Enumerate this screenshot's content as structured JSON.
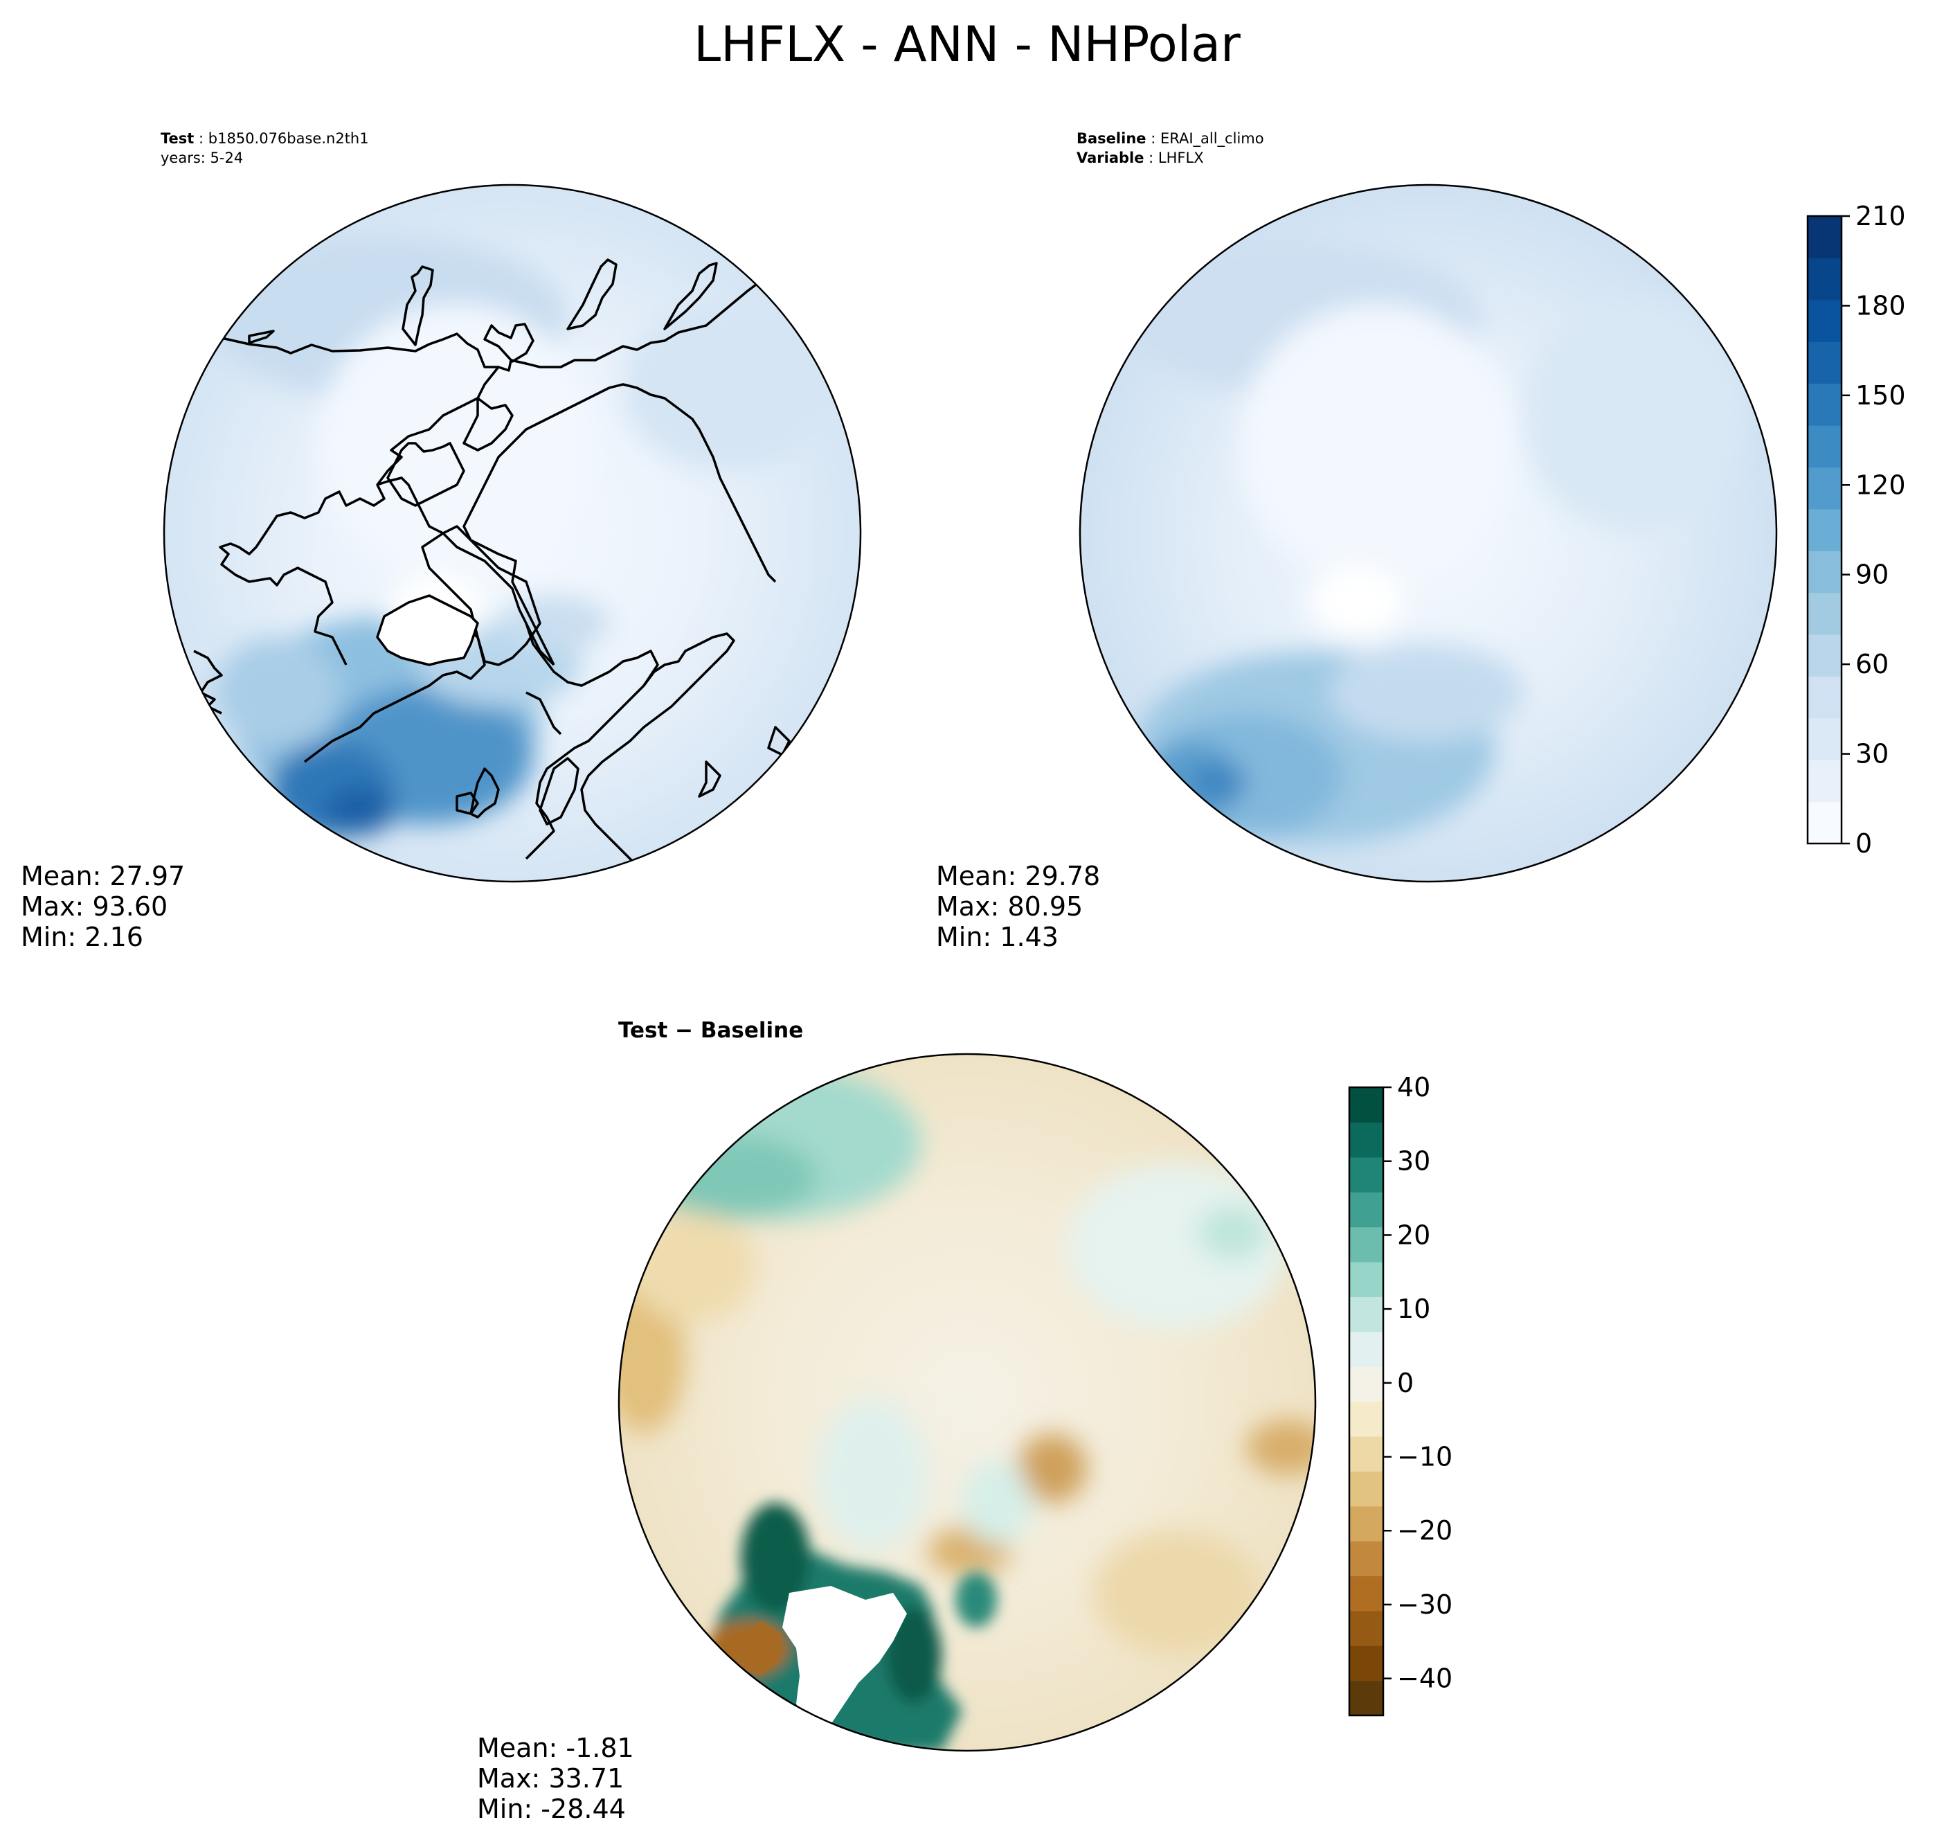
{
  "figure": {
    "title": "LHFLX - ANN - NHPolar"
  },
  "panels": {
    "test": {
      "label_bold": "Test",
      "label_value": "b1850.076base.n2th1",
      "years": "years: 5-24",
      "stats": {
        "mean": "Mean: 27.97",
        "max": "Max: 93.60",
        "min": "Min:  2.16"
      }
    },
    "baseline": {
      "label_bold": "Baseline",
      "label_value": "ERAI_all_climo",
      "var_bold": "Variable",
      "var_value": "LHFLX",
      "stats": {
        "mean": "Mean: 29.78",
        "max": "Max: 80.95",
        "min": "Min:  1.43"
      }
    },
    "diff": {
      "title": "Test − Baseline",
      "stats": {
        "mean": "Mean: -1.81",
        "max": "Max: 33.71",
        "min": "Min: -28.44"
      }
    }
  },
  "chart_data": [
    {
      "type": "heatmap",
      "panel": "test",
      "projection": "north-polar-stereographic",
      "colormap": "Blues",
      "levels_range": [
        0,
        210
      ],
      "mean": 27.97,
      "max": 93.6,
      "min": 2.16
    },
    {
      "type": "heatmap",
      "panel": "baseline",
      "projection": "north-polar-stereographic",
      "colormap": "Blues",
      "levels_range": [
        0,
        210
      ],
      "mean": 29.78,
      "max": 80.95,
      "min": 1.43
    },
    {
      "type": "heatmap",
      "panel": "diff",
      "projection": "north-polar-stereographic",
      "colormap": "BrBG",
      "levels_range": [
        -45,
        40
      ],
      "mean": -1.81,
      "max": 33.71,
      "min": -28.44
    }
  ],
  "colorbars": {
    "top": {
      "ticks": [
        "0",
        "30",
        "60",
        "90",
        "120",
        "150",
        "180",
        "210"
      ],
      "values": [
        0,
        30,
        60,
        90,
        120,
        150,
        180,
        210
      ],
      "range": [
        0,
        210
      ],
      "colors": [
        "#f7fbff",
        "#e8f1fa",
        "#dbe9f6",
        "#cfe1f2",
        "#bad6eb",
        "#a2cbe2",
        "#88bedc",
        "#6aaed6",
        "#519ccc",
        "#3c8bc3",
        "#2978b8",
        "#1764ab",
        "#0a539e",
        "#08468b",
        "#083674"
      ]
    },
    "bottom": {
      "ticks": [
        "−40",
        "−30",
        "−20",
        "−10",
        "0",
        "10",
        "20",
        "30",
        "40"
      ],
      "values": [
        -40,
        -30,
        -20,
        -10,
        0,
        10,
        20,
        30,
        40
      ],
      "range": [
        -45,
        40
      ],
      "colors": [
        "#5c3a0a",
        "#7a4708",
        "#955a13",
        "#b06e22",
        "#c2893e",
        "#d4a95f",
        "#e2c382",
        "#ecd9a6",
        "#f5eac9",
        "#f4f2e7",
        "#e2f1ef",
        "#c2e6df",
        "#97d5c8",
        "#6cbdad",
        "#40a091",
        "#1f8577",
        "#0b6a5c",
        "#02503f"
      ]
    }
  },
  "colors": {
    "land_outline": "#000000",
    "background": "#ffffff"
  }
}
